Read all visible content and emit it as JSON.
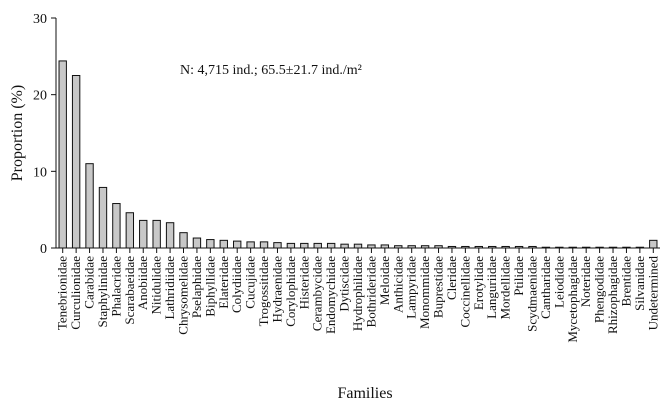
{
  "chart_data": {
    "type": "bar",
    "xlabel": "Families",
    "ylabel": "Proportion (%)",
    "ylim": [
      0,
      30
    ],
    "yticks": [
      0,
      10,
      20,
      30
    ],
    "grid": false,
    "annotation": "N: 4,715 ind.; 65.5±21.7 ind./m²",
    "colors": {
      "bar_fill": "#c8c8c8",
      "bar_stroke": "#111111"
    },
    "categories": [
      "Tenebrionidae",
      "Curculionidae",
      "Carabidae",
      "Staphylinidae",
      "Phalacridae",
      "Scarabaeidae",
      "Anobiidae",
      "Nitidulidae",
      "Lathridiidae",
      "Chrysomelidae",
      "Pselaphidae",
      "Biphyllidae",
      "Elateridae",
      "Colydiidae",
      "Cucujidae",
      "Trogossitidae",
      "Hydraenidae",
      "Corylophidae",
      "Histeridae",
      "Cerambycidae",
      "Endomychidae",
      "Dytiscidae",
      "Hydrophilidae",
      "Bothrideridae",
      "Meloidae",
      "Anthicidae",
      "Lampyridae",
      "Monommidae",
      "Buprestidae",
      "Cleridae",
      "Coccinellidae",
      "Erotylidae",
      "Languriidae",
      "Mordellidae",
      "Ptilidae",
      "Scydmaenidae",
      "Cantharidae",
      "Leiodidae",
      "Mycetophagidae",
      "Noteridae",
      "Phengodidae",
      "Rhizophagidae",
      "Brentidae",
      "Silvanidae",
      "Undetermined"
    ],
    "values": [
      24.4,
      22.5,
      11.0,
      7.9,
      5.8,
      4.6,
      3.6,
      3.6,
      3.3,
      2.0,
      1.3,
      1.1,
      1.0,
      0.9,
      0.8,
      0.8,
      0.7,
      0.6,
      0.6,
      0.6,
      0.6,
      0.5,
      0.5,
      0.4,
      0.4,
      0.3,
      0.3,
      0.3,
      0.3,
      0.2,
      0.2,
      0.2,
      0.2,
      0.2,
      0.2,
      0.2,
      0.1,
      0.1,
      0.1,
      0.1,
      0.1,
      0.1,
      0.1,
      0.1,
      1.0
    ]
  }
}
